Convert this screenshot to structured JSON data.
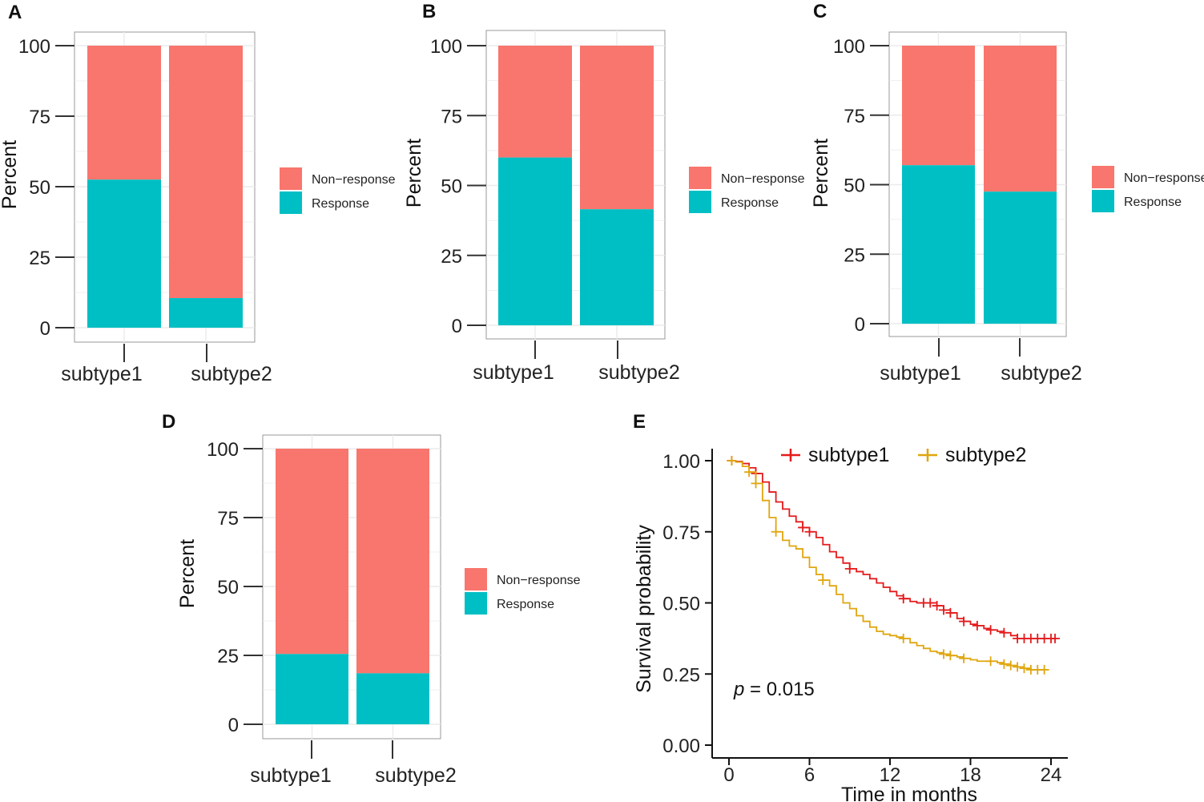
{
  "colors": {
    "non_response": "#F8766D",
    "response": "#00BFC4",
    "subtype1_curve": "#E41A1C",
    "subtype2_curve": "#E0A60F",
    "panel_bg": "#ffffff",
    "grid": "#ebebeb",
    "frame": "#999999"
  },
  "chart_data": [
    {
      "panel": "A",
      "type": "bar",
      "stacked": true,
      "categories": [
        "subtype1",
        "subtype2"
      ],
      "series": [
        {
          "name": "Response",
          "values": [
            52.5,
            10.5
          ]
        },
        {
          "name": "Non−response",
          "values": [
            47.5,
            89.5
          ]
        }
      ],
      "yticks": [
        "0",
        "25",
        "50",
        "75",
        "100"
      ],
      "ylim": [
        0,
        100
      ],
      "ylabel": "Percent",
      "xlabel": "",
      "legend": [
        "Non−response",
        "Response"
      ]
    },
    {
      "panel": "B",
      "type": "bar",
      "stacked": true,
      "categories": [
        "subtype1",
        "subtype2"
      ],
      "series": [
        {
          "name": "Response",
          "values": [
            60,
            41.5
          ]
        },
        {
          "name": "Non−response",
          "values": [
            40,
            58.5
          ]
        }
      ],
      "yticks": [
        "0",
        "25",
        "50",
        "75",
        "100"
      ],
      "ylim": [
        0,
        100
      ],
      "ylabel": "Percent",
      "xlabel": "",
      "legend": [
        "Non−response",
        "Response"
      ]
    },
    {
      "panel": "C",
      "type": "bar",
      "stacked": true,
      "categories": [
        "subtype1",
        "subtype2"
      ],
      "series": [
        {
          "name": "Response",
          "values": [
            57,
            47.5
          ]
        },
        {
          "name": "Non−response",
          "values": [
            43,
            52.5
          ]
        }
      ],
      "yticks": [
        "0",
        "25",
        "50",
        "75",
        "100"
      ],
      "ylim": [
        0,
        100
      ],
      "ylabel": "Percent",
      "xlabel": "",
      "legend": [
        "Non−response",
        "Response"
      ]
    },
    {
      "panel": "D",
      "type": "bar",
      "stacked": true,
      "categories": [
        "subtype1",
        "subtype2"
      ],
      "series": [
        {
          "name": "Response",
          "values": [
            25.5,
            18.5
          ]
        },
        {
          "name": "Non−response",
          "values": [
            74.5,
            81.5
          ]
        }
      ],
      "yticks": [
        "0",
        "25",
        "50",
        "75",
        "100"
      ],
      "ylim": [
        0,
        100
      ],
      "ylabel": "Percent",
      "xlabel": "",
      "legend": [
        "Non−response",
        "Response"
      ]
    },
    {
      "panel": "E",
      "type": "line",
      "subtype": "kaplan-meier",
      "xlabel": "Time in months",
      "ylabel": "Survival probability",
      "xlim": [
        0,
        24
      ],
      "ylim": [
        0,
        1
      ],
      "xticks": [
        "0",
        "6",
        "12",
        "18",
        "24"
      ],
      "yticks": [
        "0.00",
        "0.25",
        "0.50",
        "0.75",
        "1.00"
      ],
      "annotation": {
        "p_symbol": "p",
        "p_text": " = 0.015"
      },
      "legend": [
        "subtype1",
        "subtype2"
      ],
      "series": [
        {
          "name": "subtype1",
          "x": [
            0,
            0.5,
            1,
            1.5,
            2,
            2.5,
            3,
            3.5,
            4,
            4.5,
            5,
            5.5,
            6,
            6.5,
            7,
            7.5,
            8,
            8.5,
            9,
            9.5,
            10,
            10.5,
            11,
            11.5,
            12,
            12.5,
            13,
            13.5,
            14,
            14.5,
            15,
            15.5,
            16,
            16.5,
            17,
            17.5,
            18,
            18.5,
            19,
            19.5,
            20,
            20.5,
            21,
            21.5,
            22,
            22.5,
            23,
            23.5,
            24,
            24.5
          ],
          "y": [
            1.0,
            0.997,
            0.99,
            0.975,
            0.955,
            0.925,
            0.89,
            0.855,
            0.83,
            0.805,
            0.785,
            0.765,
            0.75,
            0.73,
            0.705,
            0.68,
            0.66,
            0.64,
            0.62,
            0.61,
            0.6,
            0.585,
            0.57,
            0.555,
            0.54,
            0.525,
            0.515,
            0.505,
            0.5,
            0.5,
            0.5,
            0.49,
            0.475,
            0.465,
            0.445,
            0.435,
            0.425,
            0.42,
            0.41,
            0.405,
            0.4,
            0.395,
            0.385,
            0.375,
            0.375,
            0.375,
            0.375,
            0.375,
            0.375,
            0.375
          ],
          "censor_x": [
            0.2,
            2.0,
            5.5,
            6.0,
            9.0,
            13.0,
            14.5,
            15.0,
            15.5,
            16.0,
            16.5,
            17.5,
            18.5,
            19.5,
            20.5,
            21.5,
            22.0,
            22.5,
            23.0,
            23.5,
            24.0,
            24.3
          ]
        },
        {
          "name": "subtype2",
          "x": [
            0,
            0.5,
            1,
            1.5,
            2,
            2.5,
            3,
            3.5,
            4,
            4.5,
            5,
            5.5,
            6,
            6.5,
            7,
            7.5,
            8,
            8.5,
            9,
            9.5,
            10,
            10.5,
            11,
            11.5,
            12,
            12.5,
            13,
            13.5,
            14,
            14.5,
            15,
            15.5,
            16,
            16.5,
            17,
            17.5,
            18,
            18.5,
            19,
            19.5,
            20,
            20.5,
            21,
            21.5,
            22,
            22.5,
            23,
            23.5
          ],
          "y": [
            1.0,
            0.995,
            0.98,
            0.96,
            0.92,
            0.86,
            0.8,
            0.75,
            0.72,
            0.7,
            0.69,
            0.66,
            0.625,
            0.6,
            0.58,
            0.56,
            0.53,
            0.5,
            0.48,
            0.455,
            0.435,
            0.415,
            0.4,
            0.39,
            0.385,
            0.38,
            0.375,
            0.36,
            0.35,
            0.34,
            0.33,
            0.325,
            0.32,
            0.315,
            0.31,
            0.305,
            0.3,
            0.295,
            0.295,
            0.295,
            0.29,
            0.285,
            0.28,
            0.275,
            0.27,
            0.265,
            0.265,
            0.265
          ],
          "censor_x": [
            0.2,
            1.5,
            2.0,
            3.5,
            7.0,
            13.0,
            16.0,
            16.5,
            17.5,
            19.5,
            20.5,
            21.0,
            21.5,
            22.0,
            22.5,
            23.0,
            23.5
          ]
        }
      ]
    }
  ]
}
